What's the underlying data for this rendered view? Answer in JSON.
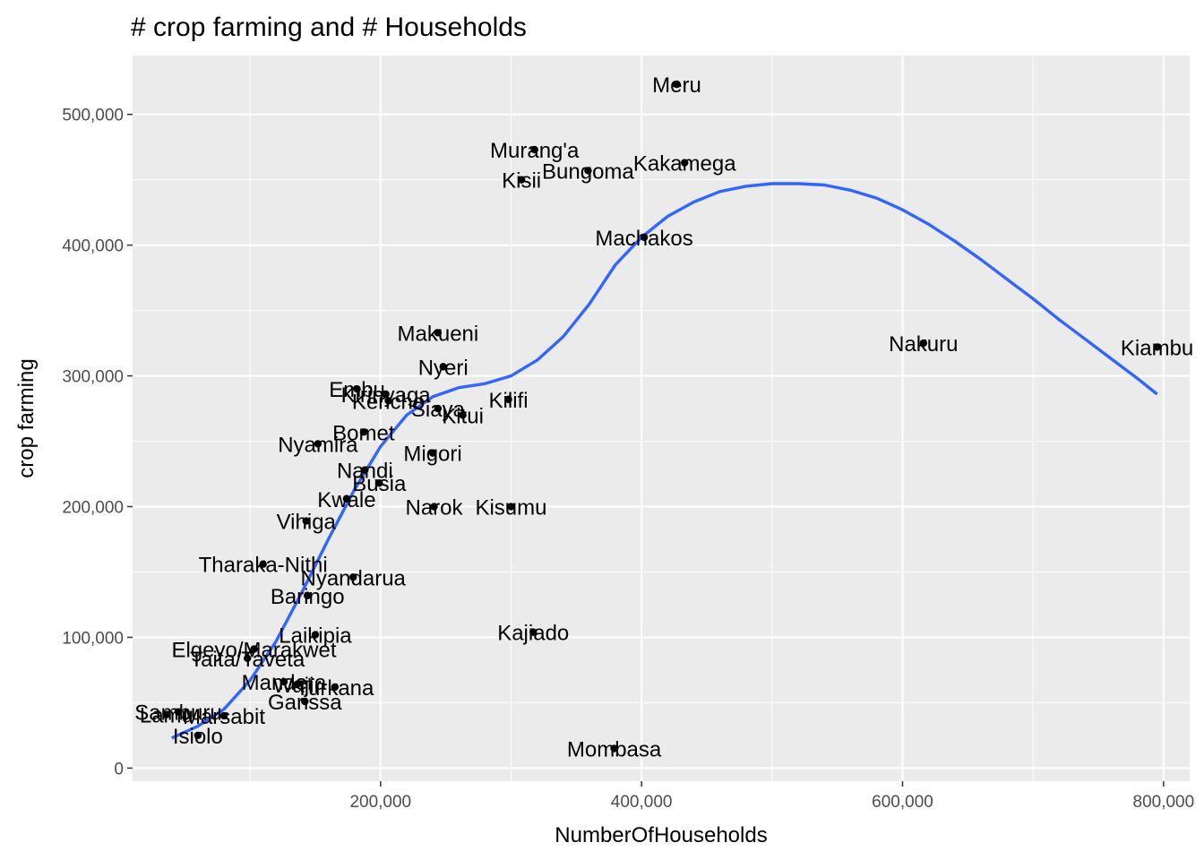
{
  "chart_data": {
    "type": "scatter",
    "title": "# crop farming and # Households",
    "xlabel": "NumberOfHouseholds",
    "ylabel": "crop farming",
    "xlim": [
      10000,
      820000
    ],
    "ylim": [
      -10000,
      545000
    ],
    "x_ticks": [
      200000,
      400000,
      600000,
      800000
    ],
    "x_tick_labels": [
      "200,000",
      "400,000",
      "600,000",
      "800,000"
    ],
    "x_minor_ticks": [
      100000,
      300000,
      500000,
      700000
    ],
    "y_ticks": [
      0,
      100000,
      200000,
      300000,
      400000,
      500000
    ],
    "y_tick_labels": [
      "0",
      "100,000",
      "200,000",
      "300,000",
      "400,000",
      "500,000"
    ],
    "y_minor_ticks": [
      50000,
      150000,
      250000,
      350000,
      450000
    ],
    "grid": true,
    "colors": {
      "panel_background": "#ebebeb",
      "grid": "#ffffff",
      "points": "#000000",
      "smooth_line": "#3366ff"
    },
    "points": [
      {
        "label": "Meru",
        "x": 427000,
        "y": 523000
      },
      {
        "label": "Murang'a",
        "x": 318000,
        "y": 473000
      },
      {
        "label": "Bungoma",
        "x": 359000,
        "y": 457000
      },
      {
        "label": "Kakamega",
        "x": 433000,
        "y": 463000
      },
      {
        "label": "Kisii",
        "x": 308000,
        "y": 450000
      },
      {
        "label": "Machakos",
        "x": 402000,
        "y": 406000
      },
      {
        "label": "Nakuru",
        "x": 616000,
        "y": 325000
      },
      {
        "label": "Kiambu",
        "x": 795000,
        "y": 322000
      },
      {
        "label": "Makueni",
        "x": 244000,
        "y": 333000
      },
      {
        "label": "Nyeri",
        "x": 248000,
        "y": 307000
      },
      {
        "label": "Embu",
        "x": 182000,
        "y": 290000
      },
      {
        "label": "Kirinyaga",
        "x": 204000,
        "y": 286000
      },
      {
        "label": "Kericho",
        "x": 206000,
        "y": 281000
      },
      {
        "label": "Siaya",
        "x": 244000,
        "y": 275000
      },
      {
        "label": "Kilifi",
        "x": 298000,
        "y": 282000
      },
      {
        "label": "Kitui",
        "x": 263000,
        "y": 270000
      },
      {
        "label": "Bomet",
        "x": 187000,
        "y": 257000
      },
      {
        "label": "Nyamira",
        "x": 152000,
        "y": 248000
      },
      {
        "label": "Migori",
        "x": 240000,
        "y": 241000
      },
      {
        "label": "Nandi",
        "x": 188000,
        "y": 228000
      },
      {
        "label": "Busia",
        "x": 199000,
        "y": 218000
      },
      {
        "label": "Kwale",
        "x": 174000,
        "y": 206000
      },
      {
        "label": "Narok",
        "x": 241000,
        "y": 200000
      },
      {
        "label": "Kisumu",
        "x": 300000,
        "y": 200000
      },
      {
        "label": "Vihiga",
        "x": 143000,
        "y": 189000
      },
      {
        "label": "Tharaka-Nithi",
        "x": 110000,
        "y": 156000
      },
      {
        "label": "Nyandarua",
        "x": 179000,
        "y": 146000
      },
      {
        "label": "Baringo",
        "x": 144000,
        "y": 132000
      },
      {
        "label": "Kajiado",
        "x": 317000,
        "y": 104000
      },
      {
        "label": "Laikipia",
        "x": 150000,
        "y": 102000
      },
      {
        "label": "Elgeyo/Marakwet",
        "x": 103000,
        "y": 91000
      },
      {
        "label": "Taita/Taveta",
        "x": 98000,
        "y": 84000
      },
      {
        "label": "Mandera",
        "x": 126000,
        "y": 66000
      },
      {
        "label": "Turkana",
        "x": 165000,
        "y": 62000
      },
      {
        "label": "Wajir",
        "x": 136000,
        "y": 64000
      },
      {
        "label": "Garissa",
        "x": 142000,
        "y": 51000
      },
      {
        "label": "Samburu",
        "x": 45000,
        "y": 43000
      },
      {
        "label": "Lamu",
        "x": 36000,
        "y": 41000
      },
      {
        "label": "Marsabit",
        "x": 80000,
        "y": 40000
      },
      {
        "label": "Isiolo",
        "x": 60000,
        "y": 25000
      },
      {
        "label": "Mombasa",
        "x": 379000,
        "y": 15000
      }
    ],
    "smooth_line": {
      "method": "loess",
      "x": [
        40000,
        60000,
        80000,
        100000,
        120000,
        140000,
        160000,
        180000,
        200000,
        220000,
        240000,
        260000,
        280000,
        300000,
        320000,
        340000,
        360000,
        380000,
        400000,
        420000,
        440000,
        460000,
        480000,
        500000,
        520000,
        540000,
        560000,
        580000,
        600000,
        620000,
        640000,
        660000,
        680000,
        700000,
        720000,
        740000,
        760000,
        780000,
        795000
      ],
      "y": [
        23000,
        32000,
        45000,
        67000,
        97000,
        135000,
        175000,
        213000,
        246000,
        270000,
        284000,
        291000,
        294000,
        300000,
        312000,
        330000,
        355000,
        385000,
        406000,
        422000,
        433000,
        441000,
        445000,
        447000,
        447000,
        446000,
        442000,
        436000,
        427000,
        416000,
        403000,
        389000,
        374000,
        359000,
        343000,
        328000,
        313000,
        298000,
        286000
      ]
    }
  }
}
